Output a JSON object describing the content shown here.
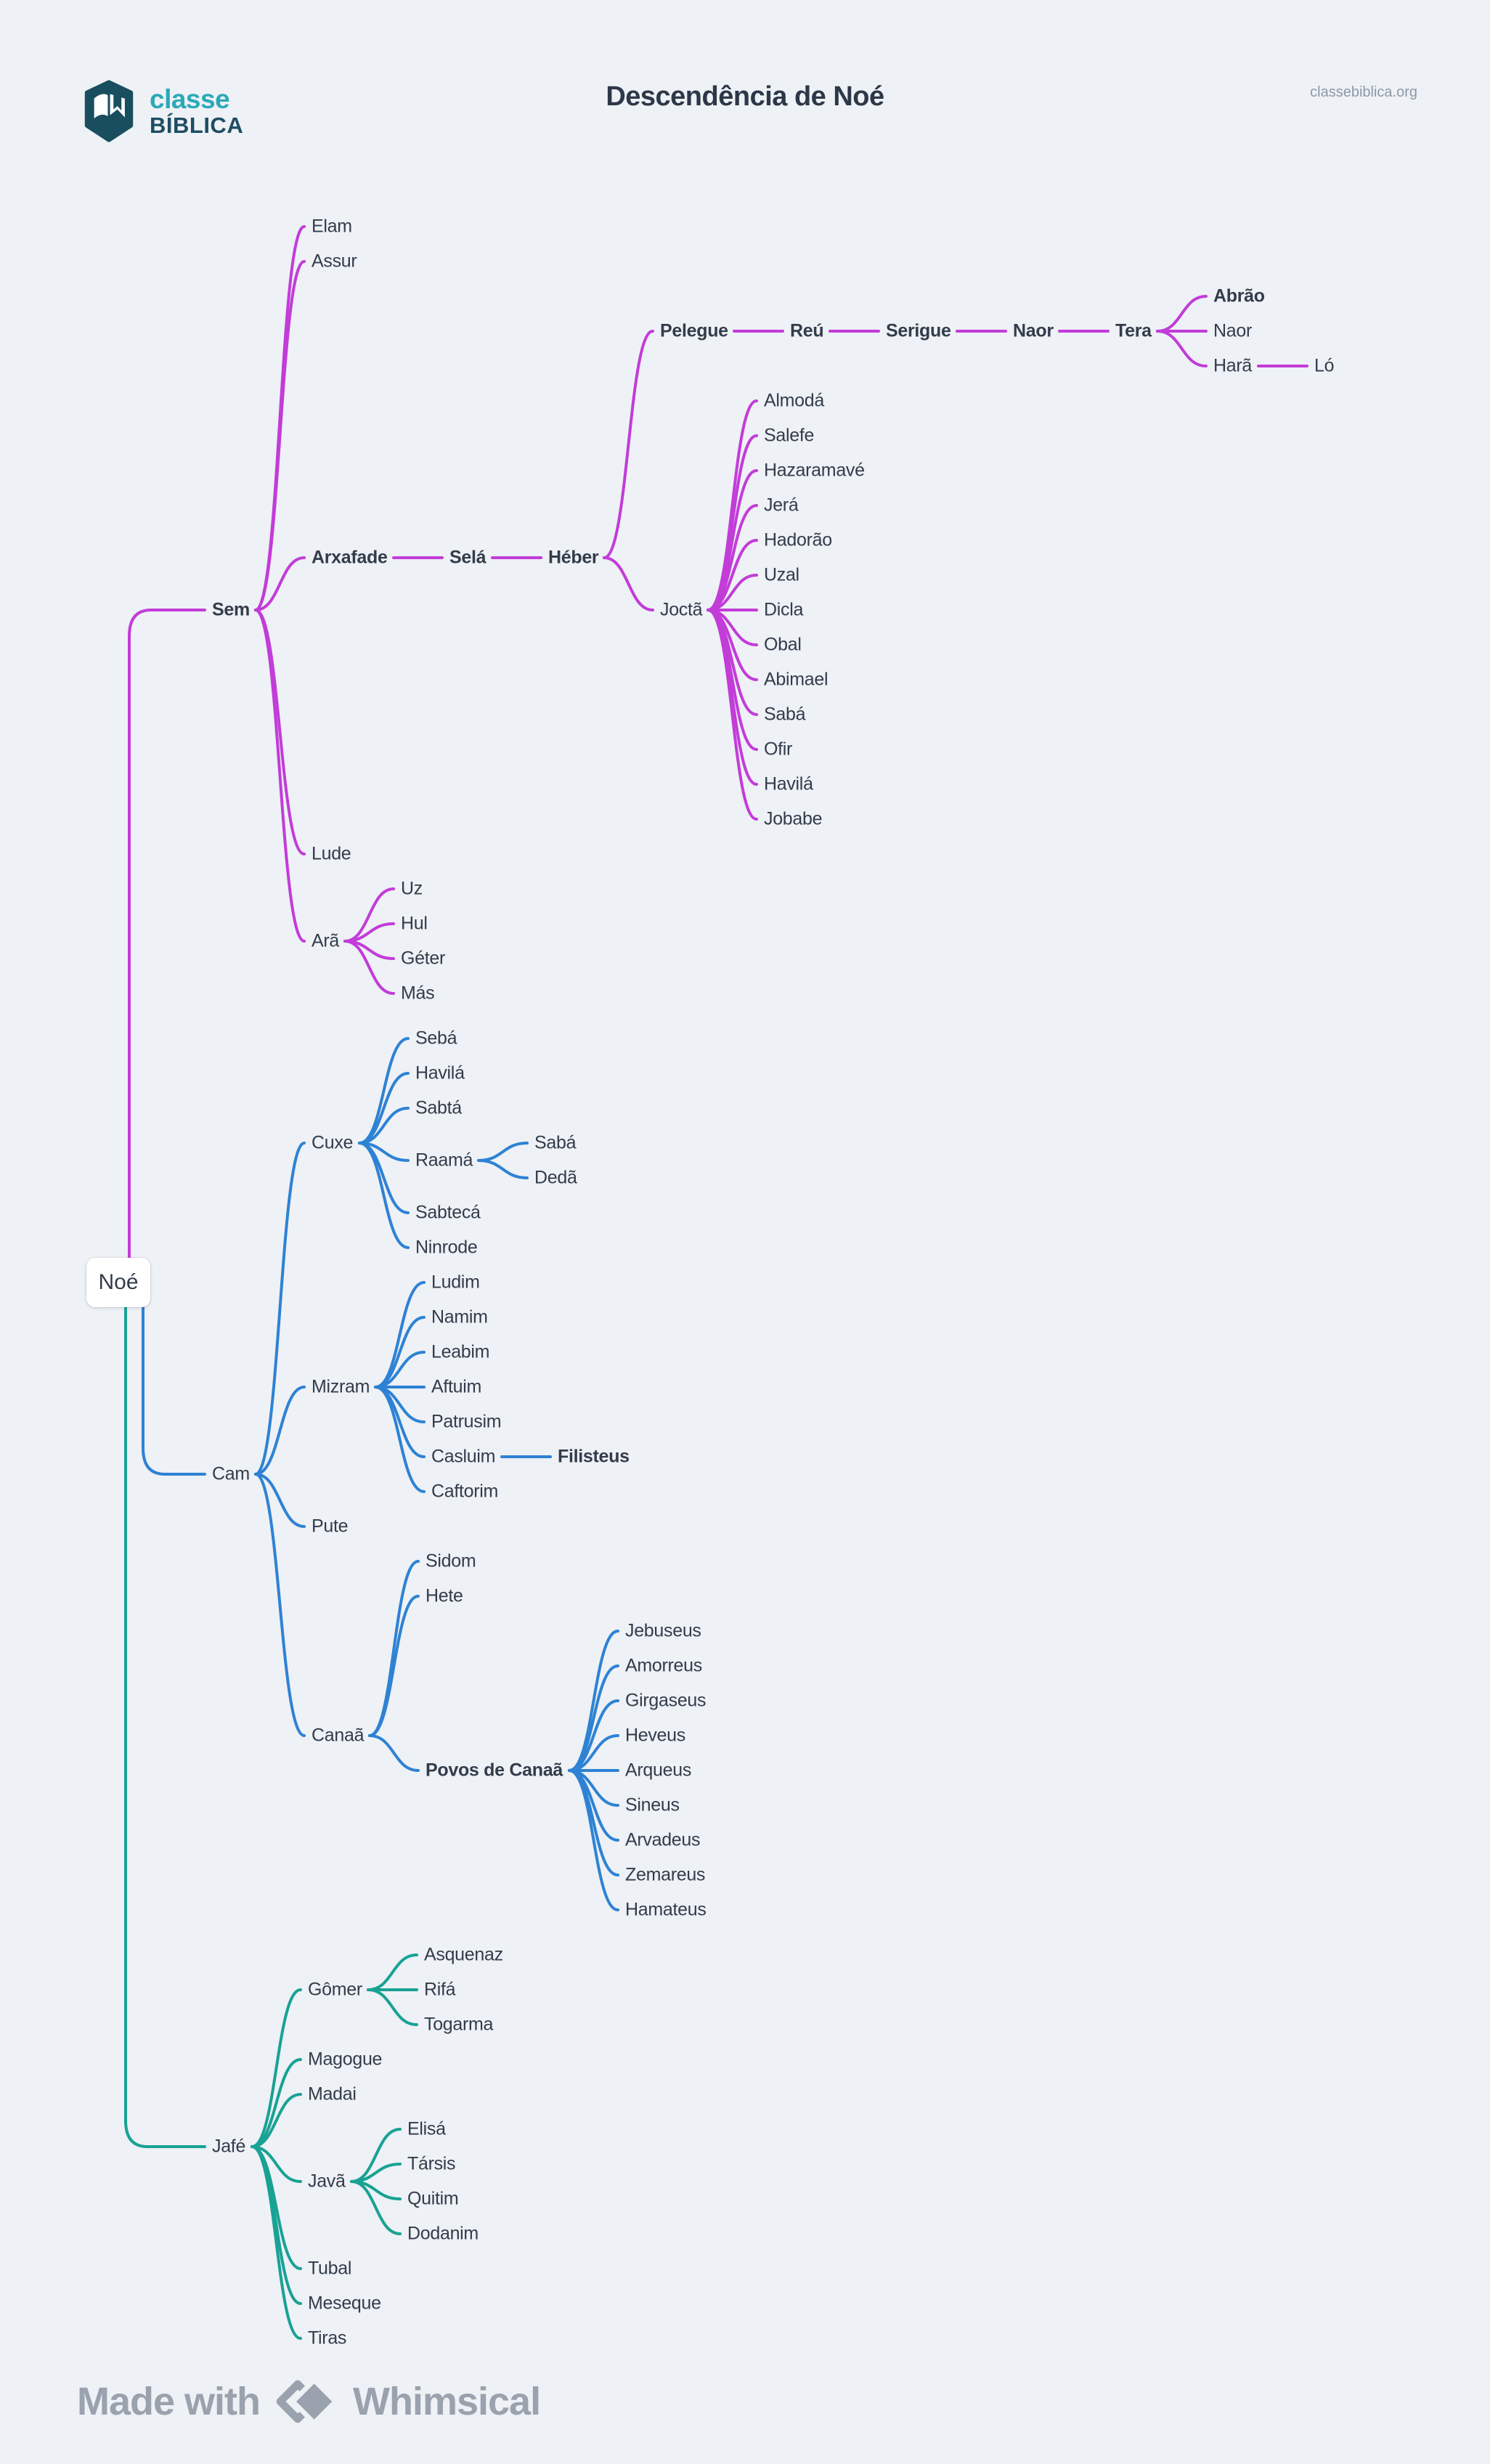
{
  "page": {
    "background": "#eef1f5"
  },
  "header": {
    "logo": {
      "icon": "open-book-icon",
      "line1": "classe",
      "line2": "BÍBLICA"
    },
    "title": "Descendência de Noé",
    "site_url": "classebiblica.org"
  },
  "footer": {
    "made_with": "Made with",
    "icon": "whimsical-diamonds-icon",
    "brand": "Whimsical"
  },
  "diagram": {
    "root": {
      "label": "Noé"
    },
    "branches": [
      {
        "color": "#c23cd8",
        "node": {
          "label": "Sem",
          "bold": true,
          "children": [
            {
              "label": "Elam"
            },
            {
              "label": "Assur"
            },
            {
              "label": "Arxafade",
              "bold": true,
              "children": [
                {
                  "label": "Selá",
                  "bold": true,
                  "children": [
                    {
                      "label": "Héber",
                      "bold": true,
                      "children": [
                        {
                          "label": "Pelegue",
                          "bold": true,
                          "children": [
                            {
                              "label": "Reú",
                              "bold": true,
                              "children": [
                                {
                                  "label": "Serigue",
                                  "bold": true,
                                  "children": [
                                    {
                                      "label": "Naor",
                                      "bold": true,
                                      "children": [
                                        {
                                          "label": "Tera",
                                          "bold": true,
                                          "children": [
                                            {
                                              "label": "Abrão",
                                              "bold": true
                                            },
                                            {
                                              "label": "Naor"
                                            },
                                            {
                                              "label": "Harã",
                                              "children": [
                                                {
                                                  "label": "Ló"
                                                }
                                              ]
                                            }
                                          ]
                                        }
                                      ]
                                    }
                                  ]
                                }
                              ]
                            }
                          ]
                        },
                        {
                          "label": "Joctã",
                          "children": [
                            {
                              "label": "Almodá"
                            },
                            {
                              "label": "Salefe"
                            },
                            {
                              "label": "Hazaramavé"
                            },
                            {
                              "label": "Jerá"
                            },
                            {
                              "label": "Hadorão"
                            },
                            {
                              "label": "Uzal"
                            },
                            {
                              "label": "Dicla"
                            },
                            {
                              "label": "Obal"
                            },
                            {
                              "label": "Abimael"
                            },
                            {
                              "label": "Sabá"
                            },
                            {
                              "label": "Ofir"
                            },
                            {
                              "label": "Havilá"
                            },
                            {
                              "label": "Jobabe"
                            }
                          ]
                        }
                      ]
                    }
                  ]
                }
              ]
            },
            {
              "label": "Lude"
            },
            {
              "label": "Arã",
              "children": [
                {
                  "label": "Uz"
                },
                {
                  "label": "Hul"
                },
                {
                  "label": "Géter"
                },
                {
                  "label": "Más"
                }
              ]
            }
          ]
        }
      },
      {
        "color": "#2e82d4",
        "node": {
          "label": "Cam",
          "children": [
            {
              "label": "Cuxe",
              "children": [
                {
                  "label": "Sebá"
                },
                {
                  "label": "Havilá"
                },
                {
                  "label": "Sabtá"
                },
                {
                  "label": "Raamá",
                  "children": [
                    {
                      "label": "Sabá"
                    },
                    {
                      "label": "Dedã"
                    }
                  ]
                },
                {
                  "label": "Sabtecá"
                },
                {
                  "label": "Ninrode"
                }
              ]
            },
            {
              "label": "Mizram",
              "children": [
                {
                  "label": "Ludim"
                },
                {
                  "label": "Namim"
                },
                {
                  "label": "Leabim"
                },
                {
                  "label": "Aftuim"
                },
                {
                  "label": "Patrusim"
                },
                {
                  "label": "Casluim",
                  "children": [
                    {
                      "label": "Filisteus",
                      "bold": true
                    }
                  ]
                },
                {
                  "label": "Caftorim"
                }
              ]
            },
            {
              "label": "Pute"
            },
            {
              "label": "Canaã",
              "children": [
                {
                  "label": "Sidom"
                },
                {
                  "label": "Hete"
                },
                {
                  "label": "Povos de Canaã",
                  "bold": true,
                  "children": [
                    {
                      "label": "Jebuseus"
                    },
                    {
                      "label": "Amorreus"
                    },
                    {
                      "label": "Girgaseus"
                    },
                    {
                      "label": "Heveus"
                    },
                    {
                      "label": "Arqueus"
                    },
                    {
                      "label": "Sineus"
                    },
                    {
                      "label": "Arvadeus"
                    },
                    {
                      "label": "Zemareus"
                    },
                    {
                      "label": "Hamateus"
                    }
                  ]
                }
              ]
            }
          ]
        }
      },
      {
        "color": "#18a295",
        "node": {
          "label": "Jafé",
          "children": [
            {
              "label": "Gômer",
              "children": [
                {
                  "label": "Asquenaz"
                },
                {
                  "label": "Rifá"
                },
                {
                  "label": "Togarma"
                }
              ]
            },
            {
              "label": "Magogue"
            },
            {
              "label": "Madai"
            },
            {
              "label": "Javã",
              "children": [
                {
                  "label": "Elisá"
                },
                {
                  "label": "Társis"
                },
                {
                  "label": "Quitim"
                },
                {
                  "label": "Dodanim"
                }
              ]
            },
            {
              "label": "Tubal"
            },
            {
              "label": "Meseque"
            },
            {
              "label": "Tiras"
            }
          ]
        }
      }
    ]
  }
}
